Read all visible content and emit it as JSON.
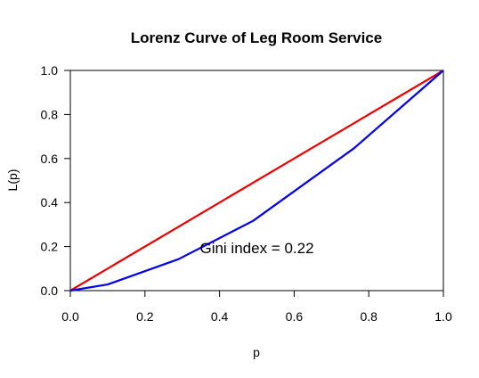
{
  "chart_data": {
    "type": "line",
    "title": "Lorenz Curve of Leg Room Service",
    "xlabel": "p",
    "ylabel": "L(p)",
    "xlim": [
      0,
      1
    ],
    "ylim": [
      0,
      1
    ],
    "x_ticks": [
      "0.0",
      "0.2",
      "0.4",
      "0.6",
      "0.8",
      "1.0"
    ],
    "y_ticks": [
      "0.0",
      "0.2",
      "0.4",
      "0.6",
      "0.8",
      "1.0"
    ],
    "grid": false,
    "series": [
      {
        "color": "#ee0000",
        "x": [
          0,
          1
        ],
        "y": [
          0,
          1
        ]
      },
      {
        "color": "#0000ee",
        "x": [
          0,
          0.1,
          0.29,
          0.49,
          0.76,
          1.0
        ],
        "y": [
          0,
          0.028,
          0.143,
          0.317,
          0.646,
          1.0
        ]
      }
    ],
    "annotation": {
      "text": "Gini index = 0.22",
      "x": 0.5,
      "y": 0.195
    }
  }
}
